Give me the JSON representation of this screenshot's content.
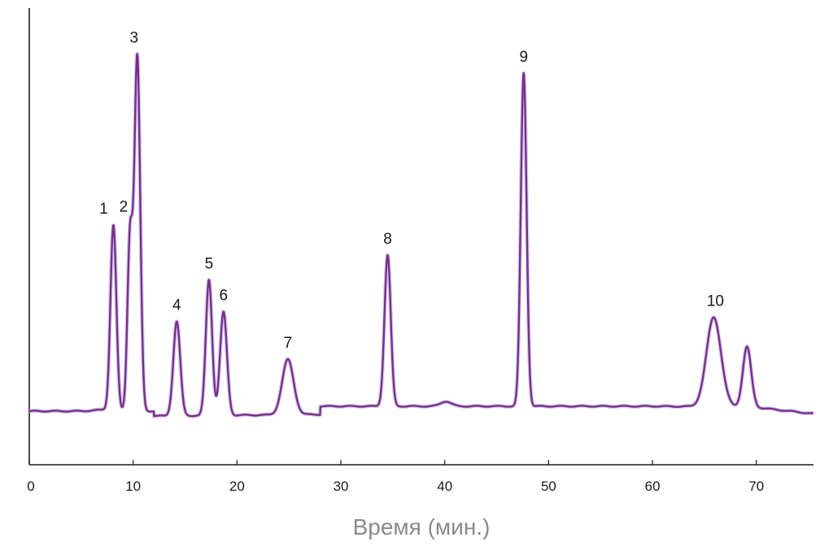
{
  "chart_data": {
    "type": "line",
    "title": "",
    "xlabel": "Время (мин.)",
    "ylabel": "",
    "xlim": [
      0,
      75.5
    ],
    "x_ticks": [
      0,
      10,
      20,
      30,
      40,
      50,
      60,
      70
    ],
    "x_tick_labels": [
      "0",
      "10",
      "20",
      "30",
      "40",
      "50",
      "60",
      "70"
    ],
    "y_ticks": false,
    "grid": false,
    "legend": "none",
    "trace_color": "#7a2e8c",
    "baseline": 0,
    "peaks": [
      {
        "label": "1",
        "x": 8.1,
        "height": 229,
        "width": 0.28
      },
      {
        "label": "2",
        "x": 9.7,
        "height": 213,
        "width": 0.25
      },
      {
        "label": "3",
        "x": 10.4,
        "height": 435,
        "width": 0.28
      },
      {
        "label": "4",
        "x": 14.2,
        "height": 116,
        "width": 0.33
      },
      {
        "label": "5",
        "x": 17.3,
        "height": 167,
        "width": 0.3
      },
      {
        "label": "6",
        "x": 18.7,
        "height": 127,
        "width": 0.33
      },
      {
        "label": "7",
        "x": 24.9,
        "height": 68,
        "width": 0.55
      },
      {
        "label": "8",
        "x": 34.5,
        "height": 186,
        "width": 0.3
      },
      {
        "label": "9",
        "x": 47.6,
        "height": 410,
        "width": 0.28
      },
      {
        "label": "10",
        "x": 65.9,
        "height": 110,
        "width": 0.7
      },
      {
        "label": "",
        "x": 69.1,
        "height": 74,
        "width": 0.4
      },
      {
        "label": "",
        "x": 40.1,
        "height": 6,
        "width": 0.5
      }
    ]
  }
}
